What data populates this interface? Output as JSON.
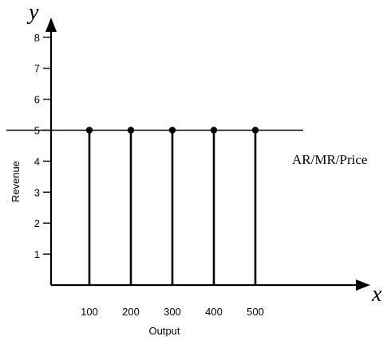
{
  "chart_data": {
    "type": "line",
    "title": "",
    "xlabel": "Output",
    "ylabel": "Revenue",
    "x_axis_symbol": "x",
    "y_axis_symbol": "y",
    "x_ticks": [
      100,
      200,
      300,
      400,
      500
    ],
    "y_ticks": [
      1,
      2,
      3,
      4,
      5,
      6,
      7,
      8
    ],
    "xlim": [
      0,
      500
    ],
    "ylim": [
      0,
      8
    ],
    "grid": false,
    "series": [
      {
        "name": "AR/MR/Price",
        "x": [
          100,
          200,
          300,
          400,
          500
        ],
        "y": [
          5,
          5,
          5,
          5,
          5
        ]
      }
    ],
    "vertical_drop_lines": true,
    "colors": {
      "axis": "#000000",
      "line": "#000000",
      "marker": "#000000"
    }
  }
}
